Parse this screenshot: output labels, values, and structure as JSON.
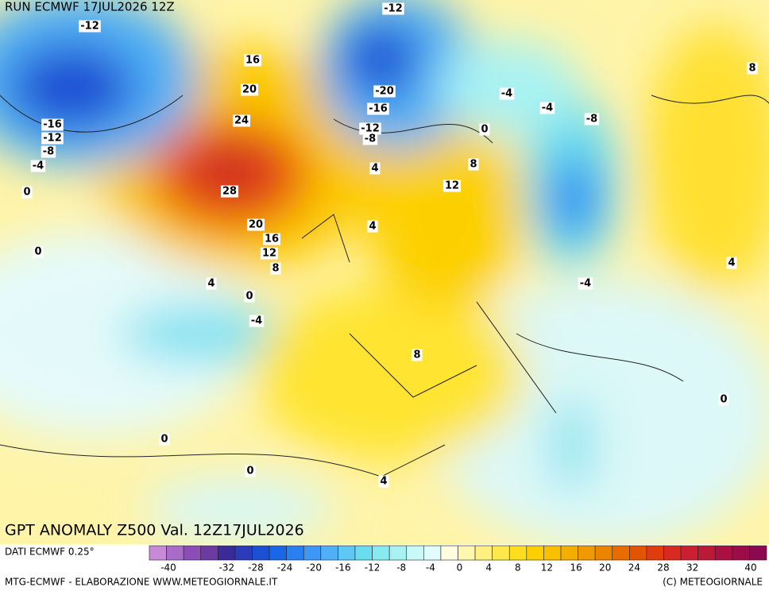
{
  "header": {
    "run": "RUN ECMWF 17JUL2026 12Z",
    "title": "GPT ANOMALY Z500 Val. 12Z17JUL2026"
  },
  "map": {
    "contour_labels": [
      "-12",
      "-12",
      "16",
      "20",
      "-20",
      "-16",
      "-4",
      "-4",
      "-8",
      "8",
      "24",
      "-16",
      "-12",
      "-8",
      "-12",
      "-8",
      "0",
      "8",
      "-4",
      "4",
      "28",
      "12",
      "0",
      "20",
      "4",
      "16",
      "12",
      "0",
      "8",
      "4",
      "4",
      "-4",
      "0",
      "-4",
      "8",
      "0",
      "0",
      "0",
      "4"
    ]
  },
  "footer": {
    "source": "DATI ECMWF 0.25°",
    "credit": "MTG-ECMWF - ELABORAZIONE WWW.METEOGIORNALE.IT",
    "copyright": "(C) METEOGIORNALE"
  },
  "scale": {
    "labels": [
      -40,
      -32,
      -28,
      -24,
      -20,
      -16,
      -12,
      -8,
      -4,
      0,
      4,
      8,
      12,
      16,
      20,
      24,
      28,
      32,
      40
    ],
    "colors": [
      "#c88ad8",
      "#a86cc8",
      "#8a4eb4",
      "#6c3aa0",
      "#3a2a9a",
      "#2a3cb8",
      "#1c50d4",
      "#1a66e6",
      "#2a80f0",
      "#3c98f4",
      "#50b0f6",
      "#5ec8f4",
      "#6adcf0",
      "#86eaf0",
      "#a8f2f4",
      "#c8f8f8",
      "#e0fcfc",
      "#fffce0",
      "#fff6b0",
      "#fff080",
      "#ffe84c",
      "#ffde20",
      "#fcd000",
      "#f8c000",
      "#f4ae00",
      "#f09a00",
      "#ec8400",
      "#e86c00",
      "#e45400",
      "#e03c10",
      "#d82a20",
      "#cc2030",
      "#bc1838",
      "#ac1040",
      "#9c0c48",
      "#8c0850"
    ]
  }
}
